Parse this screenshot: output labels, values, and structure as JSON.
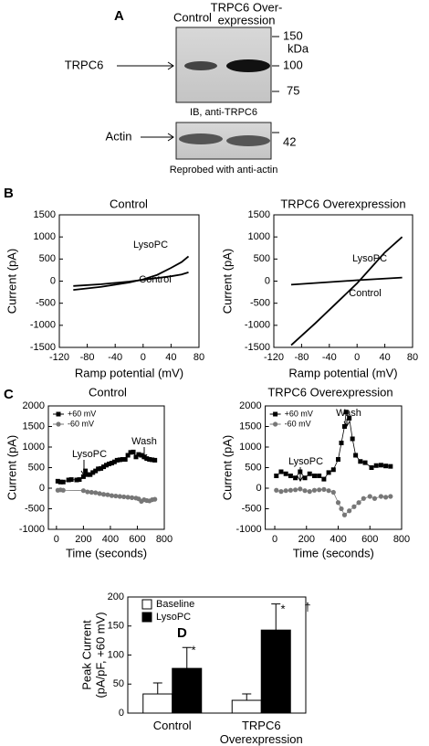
{
  "panel_labels": [
    "A",
    "B",
    "C",
    "D"
  ],
  "blot": {
    "lanes": [
      "Control",
      [
        "TRPC6 Over-",
        "expression"
      ]
    ],
    "target": "TRPC6",
    "markers": [
      "150",
      "kDa",
      "100",
      "75"
    ],
    "caption": "IB, anti-TRPC6",
    "loading": "Actin",
    "loading_marker": "42",
    "loading_caption": "Reprobed with anti-actin"
  },
  "chart_data": [
    {
      "type": "line",
      "title": "Control",
      "xlabel": "Ramp potential (mV)",
      "ylabel": "Current (pA)",
      "xlim": [
        -120,
        80
      ],
      "xticks": [
        -120,
        -80,
        -40,
        0,
        40,
        80
      ],
      "ylim": [
        -1500,
        1500
      ],
      "yticks": [
        -1500,
        -1000,
        -500,
        0,
        500,
        1000,
        1500
      ],
      "annotations": [
        "LysoPC",
        "Control"
      ],
      "series": [
        {
          "color": "#000",
          "x": [
            -100,
            -60,
            -20,
            0,
            20,
            40,
            55,
            65
          ],
          "values": [
            -200,
            -130,
            -30,
            40,
            140,
            300,
            430,
            560
          ]
        },
        {
          "color": "#000",
          "x": [
            -100,
            -60,
            -20,
            0,
            20,
            40,
            55,
            65
          ],
          "values": [
            -110,
            -70,
            -10,
            30,
            70,
            110,
            150,
            200
          ]
        }
      ]
    },
    {
      "type": "line",
      "title": "TRPC6 Overexpression",
      "xlabel": "Ramp potential (mV)",
      "ylabel": "Current (pA)",
      "xlim": [
        -120,
        80
      ],
      "xticks": [
        -120,
        -80,
        -40,
        0,
        40,
        80
      ],
      "ylim": [
        -1500,
        1500
      ],
      "yticks": [
        -1500,
        -1000,
        -500,
        0,
        500,
        1000,
        1500
      ],
      "annotations": [
        "LysoPC",
        "Control"
      ],
      "series": [
        {
          "color": "#000",
          "x": [
            -95,
            -60,
            -20,
            0,
            20,
            40,
            65
          ],
          "values": [
            -1450,
            -950,
            -350,
            -50,
            300,
            650,
            1000
          ]
        },
        {
          "color": "#000",
          "x": [
            -95,
            0,
            65
          ],
          "values": [
            -80,
            20,
            80
          ]
        }
      ]
    },
    {
      "type": "line",
      "title": "Control",
      "xlabel": "Time (seconds)",
      "ylabel": "Current (pA)",
      "xlim": [
        -60,
        800
      ],
      "xticks": [
        0,
        200,
        400,
        600,
        800
      ],
      "ylim": [
        -1000,
        2000
      ],
      "yticks": [
        -1000,
        -500,
        0,
        500,
        1000,
        1500,
        2000
      ],
      "legend": "upper left",
      "annotations": [
        "LysoPC",
        "Wash"
      ],
      "series": [
        {
          "name": "+60 mV",
          "color": "#000",
          "marker": "square",
          "x": [
            10,
            30,
            50,
            90,
            110,
            150,
            170,
            200,
            215,
            230,
            250,
            270,
            290,
            310,
            330,
            350,
            370,
            390,
            410,
            430,
            450,
            470,
            490,
            510,
            530,
            550,
            570,
            590,
            610,
            630,
            650,
            670,
            690,
            710,
            730
          ],
          "values": [
            170,
            150,
            150,
            200,
            210,
            200,
            210,
            280,
            420,
            330,
            330,
            380,
            420,
            470,
            480,
            520,
            560,
            590,
            610,
            640,
            680,
            690,
            700,
            700,
            800,
            870,
            880,
            760,
            820,
            800,
            760,
            720,
            700,
            690,
            680
          ]
        },
        {
          "name": "-60 mV",
          "color": "#777",
          "marker": "circle",
          "x": [
            10,
            30,
            50,
            200,
            230,
            260,
            290,
            320,
            350,
            380,
            410,
            440,
            470,
            500,
            530,
            560,
            590,
            610,
            630,
            650,
            670,
            690,
            710,
            730
          ],
          "values": [
            -50,
            -40,
            -50,
            -60,
            -90,
            -100,
            -110,
            -130,
            -150,
            -160,
            -180,
            -190,
            -200,
            -210,
            -220,
            -230,
            -240,
            -260,
            -320,
            -280,
            -300,
            -310,
            -280,
            -270
          ]
        }
      ]
    },
    {
      "type": "line",
      "title": "TRPC6 Overexpression",
      "xlabel": "Time (seconds)",
      "ylabel": "Current (pA)",
      "xlim": [
        -60,
        800
      ],
      "xticks": [
        0,
        200,
        400,
        600,
        800
      ],
      "ylim": [
        -1000,
        2000
      ],
      "yticks": [
        -1000,
        -500,
        0,
        500,
        1000,
        1500,
        2000
      ],
      "legend": "upper left",
      "annotations": [
        "LysoPC",
        "Wash"
      ],
      "series": [
        {
          "name": "+60 mV",
          "color": "#000",
          "marker": "square",
          "x": [
            10,
            40,
            70,
            100,
            130,
            160,
            190,
            220,
            250,
            280,
            310,
            340,
            370,
            400,
            420,
            440,
            450,
            470,
            490,
            510,
            540,
            570,
            610,
            640,
            670,
            700,
            730
          ],
          "values": [
            300,
            400,
            350,
            300,
            250,
            400,
            250,
            350,
            300,
            300,
            220,
            380,
            450,
            700,
            1100,
            1500,
            1850,
            1700,
            1200,
            800,
            650,
            620,
            500,
            550,
            560,
            540,
            530
          ]
        },
        {
          "name": "-60 mV",
          "color": "#777",
          "marker": "circle",
          "x": [
            10,
            40,
            70,
            100,
            130,
            160,
            190,
            220,
            250,
            280,
            310,
            340,
            370,
            400,
            420,
            440,
            470,
            500,
            530,
            560,
            600,
            630,
            670,
            700,
            730
          ],
          "values": [
            -50,
            -80,
            -60,
            -50,
            -40,
            -20,
            -60,
            -80,
            -50,
            -40,
            -30,
            -60,
            -100,
            -350,
            -500,
            -650,
            -550,
            -450,
            -350,
            -250,
            -200,
            -250,
            -200,
            -220,
            -200
          ]
        }
      ]
    },
    {
      "type": "bar",
      "ylabel": [
        "Peak Current",
        "(pA/pF, +60 mV)"
      ],
      "categories": [
        "Control",
        "TRPC6 Overexpression"
      ],
      "ylim": [
        0,
        200
      ],
      "yticks": [
        0,
        50,
        100,
        150,
        200
      ],
      "legend": "upper left",
      "annotations": [
        "*",
        "*",
        "†"
      ],
      "series": [
        {
          "name": "Baseline",
          "color": "#fff",
          "values": [
            33,
            22
          ],
          "errors": [
            19,
            11
          ]
        },
        {
          "name": "LysoPC",
          "color": "#000",
          "values": [
            77,
            143
          ],
          "errors": [
            36,
            45
          ]
        }
      ]
    }
  ]
}
